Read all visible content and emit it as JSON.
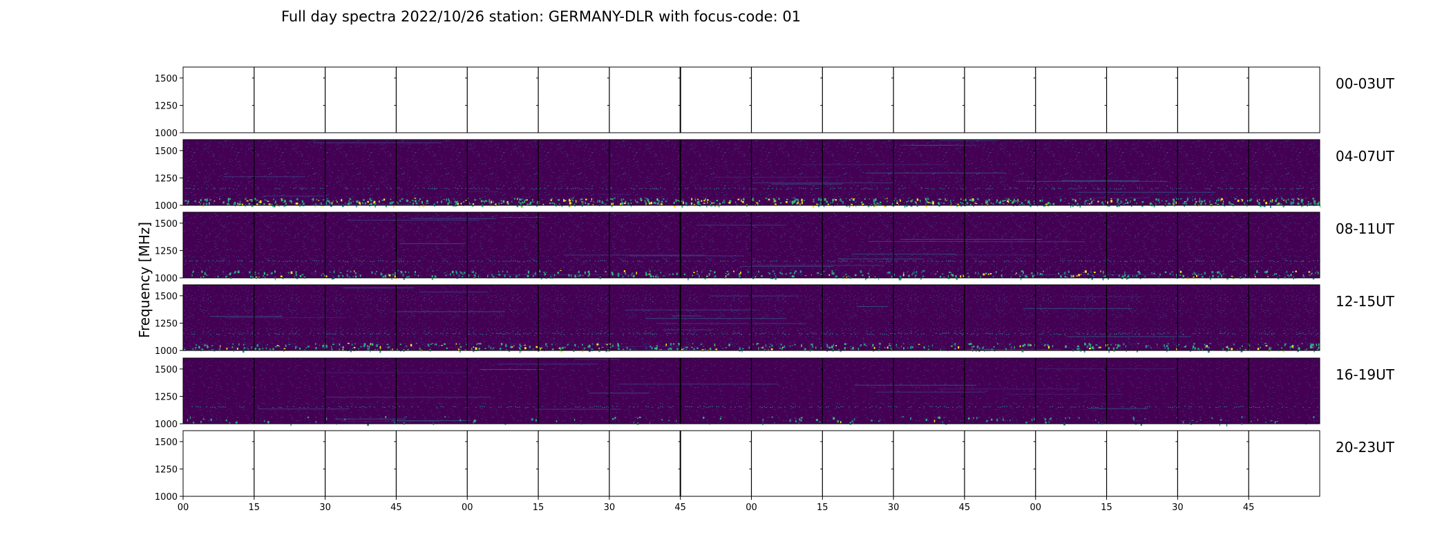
{
  "chart_data": {
    "type": "heatmap",
    "title": "Full day spectra 2022/10/26 station: GERMANY-DLR with focus-code: 01",
    "ylabel": "Frequency [MHz]",
    "xlabel": "",
    "ylim": [
      1000,
      1600
    ],
    "y_ticks": [
      "1500",
      "1250",
      "1000"
    ],
    "x_ticks": [
      "00",
      "15",
      "30",
      "45",
      "00",
      "15",
      "30",
      "45",
      "00",
      "15",
      "30",
      "45",
      "00",
      "15",
      "30",
      "45"
    ],
    "colormap": "viridis",
    "colors": {
      "background": "#440154",
      "mid": "#21918c",
      "high": "#fde725"
    },
    "panels_per_row": 16,
    "rows": [
      {
        "label": "00-03UT",
        "has_data": false
      },
      {
        "label": "04-07UT",
        "has_data": true
      },
      {
        "label": "08-11UT",
        "has_data": true
      },
      {
        "label": "12-15UT",
        "has_data": true
      },
      {
        "label": "16-19UT",
        "has_data": true
      },
      {
        "label": "20-23UT",
        "has_data": false
      }
    ]
  }
}
